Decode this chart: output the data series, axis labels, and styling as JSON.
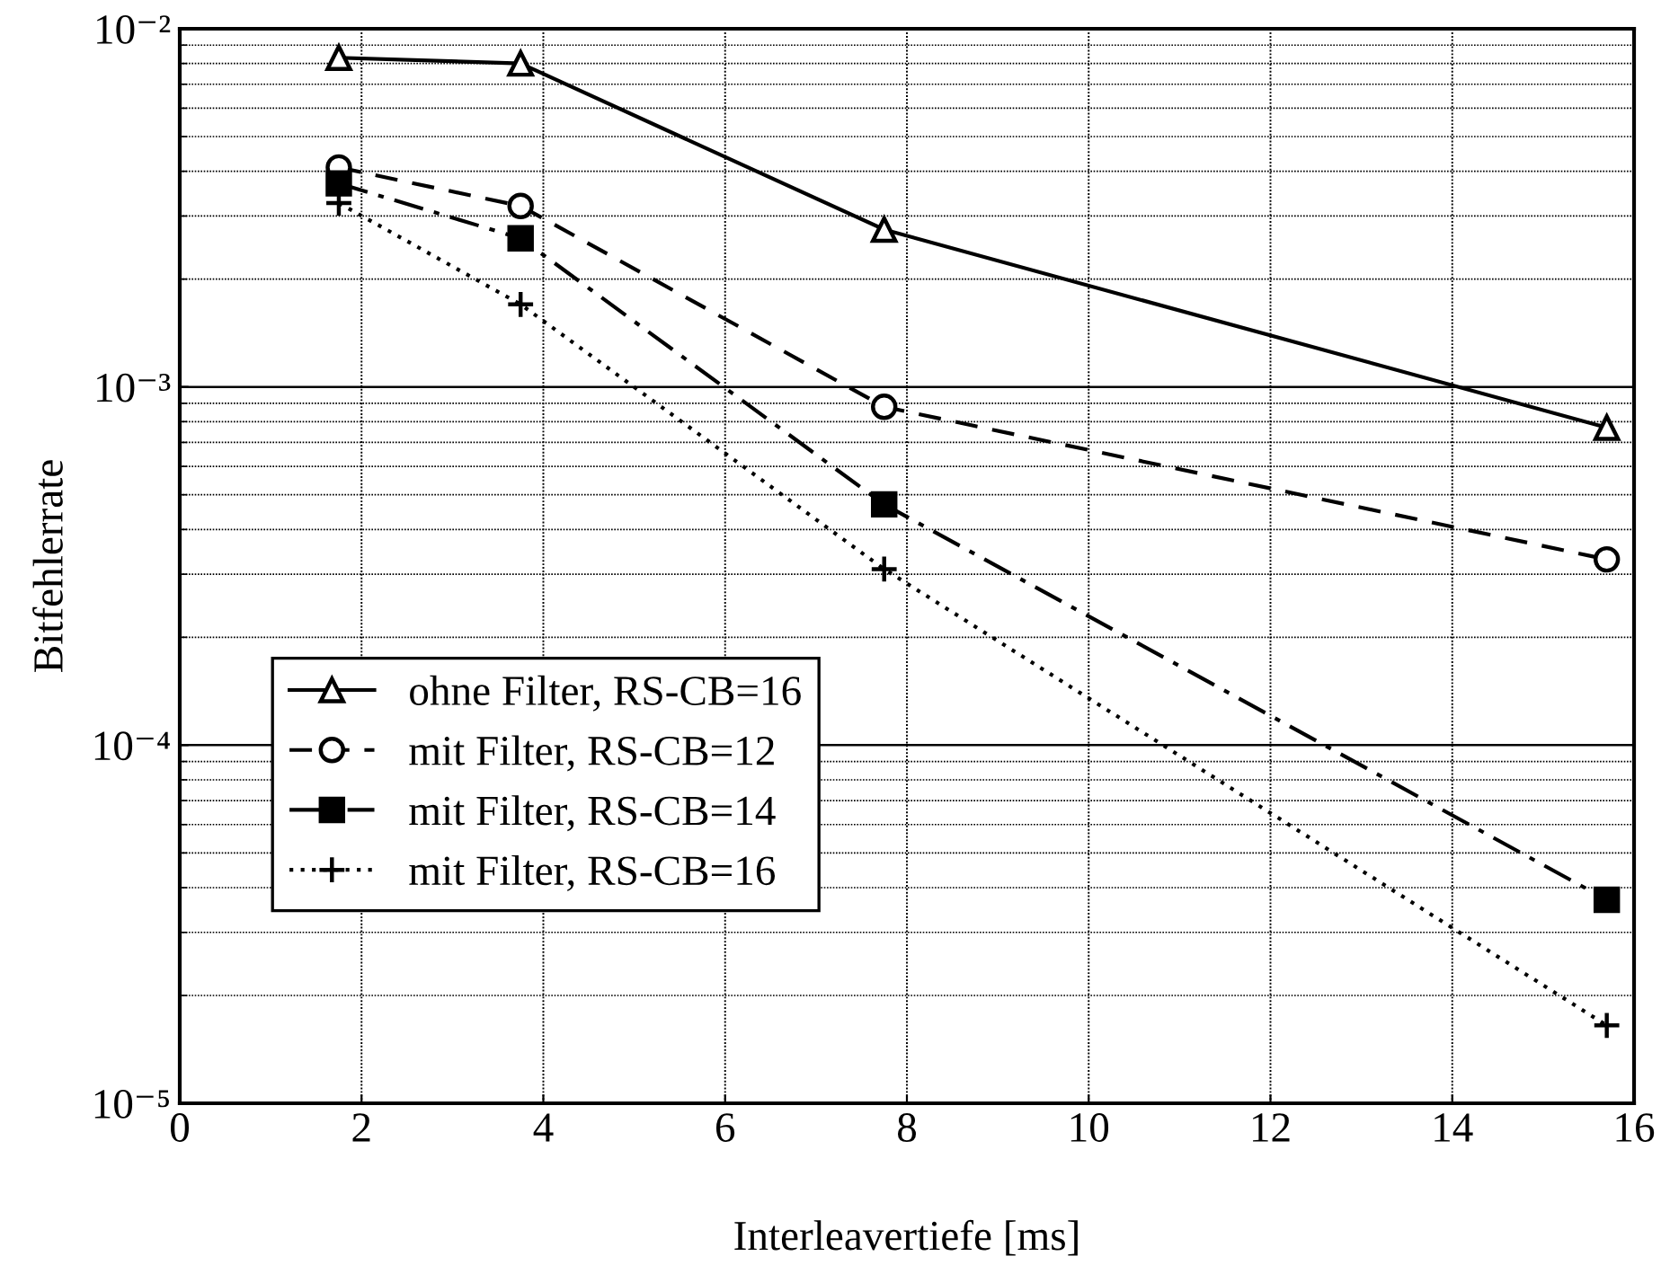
{
  "chart_data": {
    "type": "line",
    "xlabel": "Interleavertiefe [ms]",
    "ylabel": "Bitfehlerrate",
    "log": "y",
    "grid": true,
    "legend": "bottom left",
    "xlim": [
      0,
      16
    ],
    "xticks": [
      0,
      2,
      4,
      6,
      8,
      10,
      12,
      14,
      16
    ],
    "ylim": [
      1e-05,
      0.01
    ],
    "yticks": [
      {
        "value": 1e-05,
        "label": "10⁻⁵"
      },
      {
        "value": 2e-05,
        "label": null
      },
      {
        "value": 3e-05,
        "label": null
      },
      {
        "value": 4e-05,
        "label": null
      },
      {
        "value": 5e-05,
        "label": null
      },
      {
        "value": 6e-05,
        "label": null
      },
      {
        "value": 7e-05,
        "label": null
      },
      {
        "value": 8e-05,
        "label": null
      },
      {
        "value": 9e-05,
        "label": null
      },
      {
        "value": 0.0001,
        "label": "10⁻⁴"
      },
      {
        "value": 0.0002,
        "label": null
      },
      {
        "value": 0.0003,
        "label": null
      },
      {
        "value": 0.0004,
        "label": null
      },
      {
        "value": 0.0005,
        "label": null
      },
      {
        "value": 0.0006,
        "label": null
      },
      {
        "value": 0.0007,
        "label": null
      },
      {
        "value": 0.0008,
        "label": null
      },
      {
        "value": 0.0009,
        "label": null
      },
      {
        "value": 0.001,
        "label": "10⁻³"
      },
      {
        "value": 0.002,
        "label": null
      },
      {
        "value": 0.003,
        "label": null
      },
      {
        "value": 0.004,
        "label": null
      },
      {
        "value": 0.005,
        "label": null
      },
      {
        "value": 0.006,
        "label": null
      },
      {
        "value": 0.007,
        "label": null
      },
      {
        "value": 0.008,
        "label": null
      },
      {
        "value": 0.009,
        "label": null
      },
      {
        "value": 0.01,
        "label": "10⁻²"
      }
    ],
    "x": [
      1.75,
      3.75,
      7.75,
      15.7
    ],
    "series": [
      {
        "name": "ohne Filter, RS-CB=16",
        "color": "#000000",
        "marker": "triangle",
        "line_style": "solid",
        "values": [
          0.0083,
          0.008,
          0.00275,
          0.00077
        ]
      },
      {
        "name": "mit Filter, RS-CB=12",
        "color": "#000000",
        "marker": "circle",
        "line_style": "dashed",
        "values": [
          0.0041,
          0.0032,
          0.00088,
          0.00033
        ]
      },
      {
        "name": "mit Filter, RS-CB=14",
        "color": "#000000",
        "marker": "square",
        "line_style": "dashdot",
        "values": [
          0.0037,
          0.0026,
          0.00047,
          3.7e-05
        ]
      },
      {
        "name": "mit Filter, RS-CB=16",
        "color": "#000000",
        "marker": "cross",
        "line_style": "dotted",
        "values": [
          0.00326,
          0.0017,
          0.00031,
          1.65e-05
        ]
      }
    ]
  }
}
